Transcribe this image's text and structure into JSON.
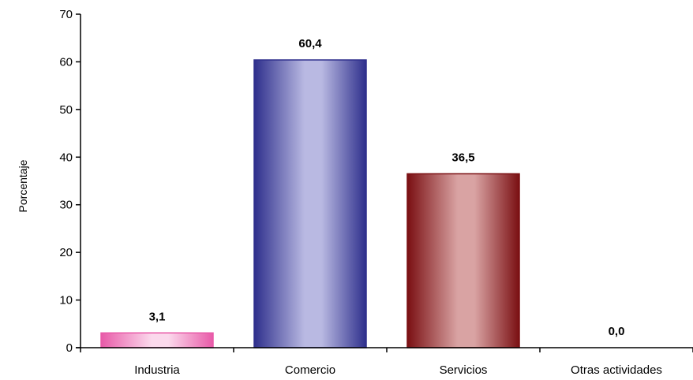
{
  "chart_data": {
    "type": "bar",
    "categories": [
      "Industria",
      "Comercio",
      "Servicios",
      "Otras actividades"
    ],
    "values": [
      3.1,
      60.4,
      36.5,
      0.0
    ],
    "value_labels": [
      "3,1",
      "60,4",
      "36,5",
      "0,0"
    ],
    "ylabel": "Porcentaje",
    "xlabel": "",
    "title": "",
    "ylim": [
      0,
      70
    ],
    "yticks": [
      0,
      10,
      20,
      30,
      40,
      50,
      60,
      70
    ],
    "grid": false,
    "legend": "none",
    "colors": [
      {
        "dark": "#e85aa8",
        "light": "#fbd9ec"
      },
      {
        "dark": "#2e2f8c",
        "light": "#b9b9e2"
      },
      {
        "dark": "#7a0f12",
        "light": "#d9a3a3"
      },
      {
        "dark": "#666666",
        "light": "#dddddd"
      }
    ]
  }
}
